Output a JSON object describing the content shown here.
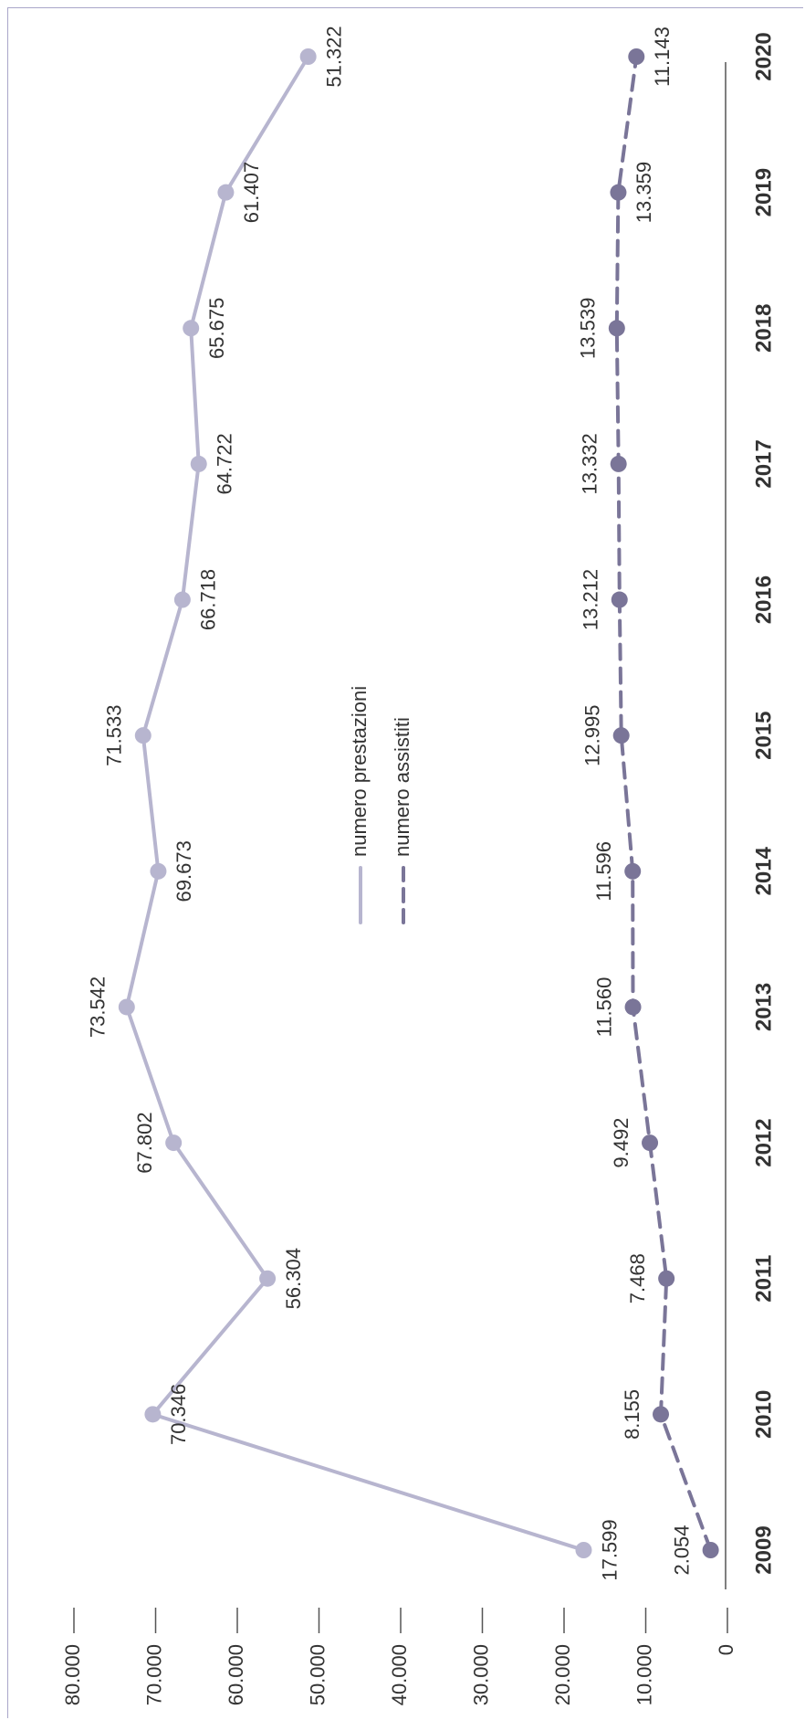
{
  "chart_data": {
    "type": "line",
    "orientation": "rotated-90",
    "x": [
      "2009",
      "2010",
      "2011",
      "2012",
      "2013",
      "2014",
      "2015",
      "2016",
      "2017",
      "2018",
      "2019",
      "2020"
    ],
    "series": [
      {
        "name": "numero prestazioni",
        "style": "solid",
        "color": "#b7b5cf",
        "values": [
          17599,
          70346,
          56304,
          67802,
          73542,
          69673,
          71533,
          66718,
          64722,
          65675,
          61407,
          51322
        ],
        "labels": [
          "17.599",
          "70.346",
          "56.304",
          "67.802",
          "73.542",
          "69.673",
          "71.533",
          "66.718",
          "64.722",
          "65.675",
          "61.407",
          "51.322"
        ]
      },
      {
        "name": "numero assistiti",
        "style": "dashed",
        "color": "#7a7598",
        "values": [
          2054,
          8155,
          7468,
          9492,
          11560,
          11596,
          12995,
          13212,
          13332,
          13539,
          13359,
          11143
        ],
        "labels": [
          "2.054",
          "8.155",
          "7.468",
          "9.492",
          "11.560",
          "11.596",
          "12.995",
          "13.212",
          "13.332",
          "13.539",
          "13.359",
          "11.143"
        ]
      }
    ],
    "y_ticks": [
      "0",
      "10.000",
      "20.000",
      "30.000",
      "40.000",
      "50.000",
      "60.000",
      "70.000",
      "80.000"
    ],
    "ylim": [
      0,
      80000
    ],
    "legend_position": "center",
    "grid": false
  }
}
